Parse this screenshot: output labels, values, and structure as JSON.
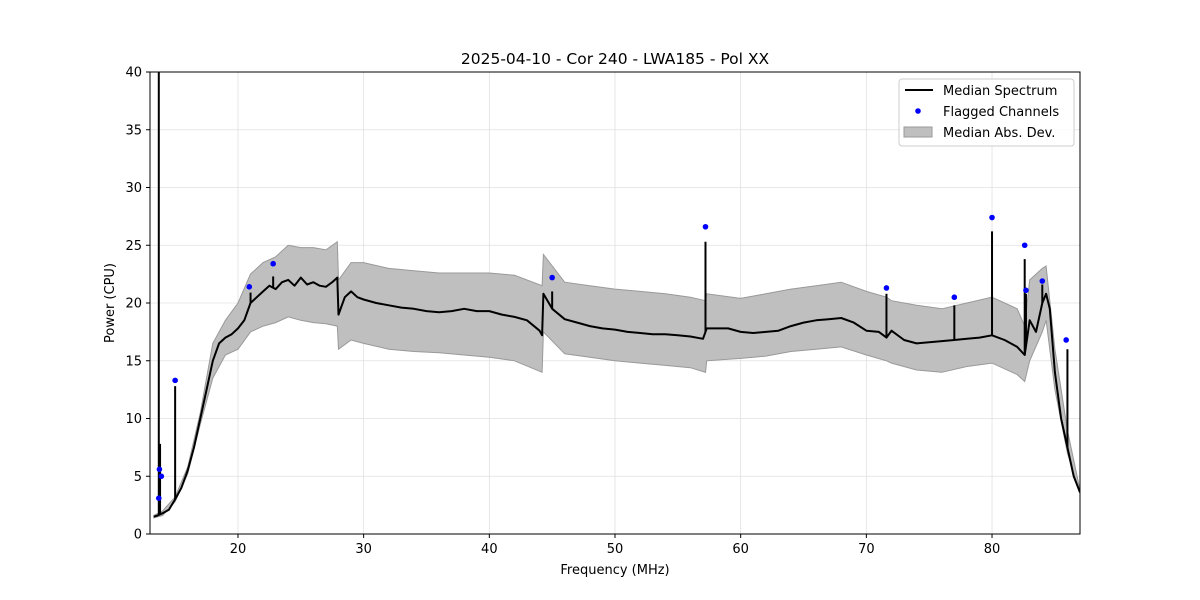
{
  "chart_data": {
    "type": "line",
    "title": "2025-04-10 - Cor 240 - LWA185 - Pol XX",
    "xlabel": "Frequency (MHz)",
    "ylabel": "Power (CPU)",
    "xlim": [
      13,
      87
    ],
    "ylim": [
      0,
      40
    ],
    "xticks": [
      20,
      30,
      40,
      50,
      60,
      70,
      80
    ],
    "yticks": [
      0,
      5,
      10,
      15,
      20,
      25,
      30,
      35,
      40
    ],
    "grid": true,
    "legend_position": "top-right",
    "colors": {
      "median": "#000000",
      "flagged": "#0000ff",
      "mad": "#bfbfbf",
      "mad_edge": "#999999"
    },
    "series": [
      {
        "name": "Median Spectrum",
        "kind": "line",
        "x": [
          13.3,
          13.6,
          14.0,
          14.5,
          15.0,
          15.5,
          16.0,
          16.5,
          17.0,
          17.5,
          18.0,
          18.5,
          19.0,
          19.5,
          20.0,
          20.5,
          21.0,
          21.5,
          22.0,
          22.5,
          23.0,
          23.5,
          24.0,
          24.5,
          25.0,
          25.5,
          26.0,
          26.5,
          27.0,
          27.5,
          27.9,
          28.0,
          28.5,
          29.0,
          29.5,
          30.0,
          31.0,
          32.0,
          33.0,
          34.0,
          35.0,
          36.0,
          37.0,
          38.0,
          39.0,
          40.0,
          41.0,
          42.0,
          43.0,
          44.0,
          44.2,
          44.3,
          45.0,
          46.0,
          47.0,
          48.0,
          49.0,
          50.0,
          51.0,
          52.0,
          53.0,
          54.0,
          55.0,
          56.0,
          57.0,
          57.3,
          58.0,
          59.0,
          60.0,
          61.0,
          62.0,
          63.0,
          64.0,
          65.0,
          66.0,
          67.0,
          68.0,
          69.0,
          70.0,
          71.0,
          71.6,
          72.0,
          73.0,
          74.0,
          75.0,
          76.0,
          77.0,
          78.0,
          79.0,
          80.0,
          81.0,
          82.0,
          82.6,
          83.0,
          83.5,
          84.0,
          84.3,
          84.6,
          85.0,
          85.5,
          86.0,
          86.5,
          87.0
        ],
        "y": [
          1.5,
          1.6,
          1.8,
          2.1,
          3.0,
          4.0,
          5.5,
          7.5,
          10.0,
          12.5,
          15.0,
          16.5,
          17.0,
          17.3,
          17.8,
          18.5,
          20.0,
          20.5,
          21.0,
          21.5,
          21.2,
          21.8,
          22.0,
          21.5,
          22.2,
          21.6,
          21.8,
          21.5,
          21.4,
          21.8,
          22.2,
          19.0,
          20.5,
          21.0,
          20.5,
          20.3,
          20.0,
          19.8,
          19.6,
          19.5,
          19.3,
          19.2,
          19.3,
          19.5,
          19.3,
          19.3,
          19.0,
          18.8,
          18.5,
          17.6,
          17.2,
          20.8,
          19.5,
          18.6,
          18.3,
          18.0,
          17.8,
          17.7,
          17.5,
          17.4,
          17.3,
          17.3,
          17.2,
          17.1,
          16.9,
          17.8,
          17.8,
          17.8,
          17.5,
          17.4,
          17.5,
          17.6,
          18.0,
          18.3,
          18.5,
          18.6,
          18.7,
          18.3,
          17.6,
          17.5,
          17.0,
          17.6,
          16.8,
          16.5,
          16.6,
          16.7,
          16.8,
          16.9,
          17.0,
          17.2,
          16.8,
          16.2,
          15.5,
          18.5,
          17.5,
          20.0,
          20.8,
          19.5,
          14.0,
          10.0,
          7.5,
          5.0,
          3.6
        ],
        "spikes": [
          [
            13.7,
            40.0
          ],
          [
            13.8,
            7.8
          ],
          [
            15.0,
            12.8
          ],
          [
            21.0,
            20.9
          ],
          [
            22.8,
            22.3
          ],
          [
            45.0,
            21.0
          ],
          [
            57.2,
            25.3
          ],
          [
            71.6,
            20.8
          ],
          [
            77.0,
            19.8
          ],
          [
            80.0,
            26.2
          ],
          [
            82.6,
            23.8
          ],
          [
            82.7,
            20.8
          ],
          [
            84.0,
            21.6
          ],
          [
            86.0,
            16.0
          ]
        ]
      },
      {
        "name": "Flagged Channels",
        "kind": "scatter",
        "x": [
          13.7,
          13.75,
          13.9,
          15.0,
          20.9,
          22.8,
          45.0,
          57.2,
          71.6,
          77.0,
          80.0,
          82.6,
          82.7,
          84.0,
          85.9
        ],
        "y": [
          3.1,
          5.6,
          5.0,
          13.3,
          21.4,
          23.4,
          22.2,
          26.6,
          21.3,
          20.5,
          27.4,
          25.0,
          21.1,
          21.9,
          16.8
        ]
      },
      {
        "name": "Median Abs. Dev.",
        "kind": "band",
        "x": [
          13.3,
          14.0,
          15.0,
          16.0,
          17.0,
          18.0,
          19.0,
          20.0,
          21.0,
          22.0,
          23.0,
          24.0,
          25.0,
          26.0,
          27.0,
          27.9,
          28.0,
          29.0,
          30.0,
          32.0,
          34.0,
          36.0,
          38.0,
          40.0,
          42.0,
          44.2,
          44.3,
          46.0,
          48.0,
          50.0,
          52.0,
          54.0,
          56.0,
          57.2,
          57.3,
          60.0,
          62.0,
          64.0,
          66.0,
          68.0,
          70.0,
          71.6,
          72.0,
          74.0,
          76.0,
          78.0,
          80.0,
          82.0,
          82.6,
          83.0,
          84.0,
          84.3,
          85.0,
          86.0,
          87.0
        ],
        "lower": [
          1.4,
          1.6,
          2.8,
          5.2,
          9.5,
          13.5,
          15.5,
          16.0,
          17.5,
          18.0,
          18.3,
          18.8,
          18.5,
          18.3,
          18.2,
          18.0,
          16.0,
          16.8,
          16.5,
          16.0,
          15.8,
          15.7,
          15.5,
          15.3,
          15.0,
          14.0,
          17.5,
          15.6,
          15.3,
          15.0,
          14.8,
          14.6,
          14.4,
          14.0,
          15.0,
          15.2,
          15.4,
          15.8,
          16.0,
          16.2,
          15.5,
          15.0,
          14.8,
          14.2,
          14.0,
          14.5,
          14.8,
          13.8,
          13.2,
          15.0,
          17.5,
          18.5,
          12.5,
          7.0,
          3.5
        ],
        "upper": [
          1.6,
          2.0,
          3.2,
          5.8,
          10.5,
          16.5,
          18.5,
          20.0,
          22.5,
          23.5,
          24.0,
          25.0,
          24.8,
          24.8,
          24.6,
          25.3,
          22.0,
          23.5,
          23.5,
          23.0,
          22.8,
          22.6,
          22.6,
          22.6,
          22.4,
          21.5,
          24.2,
          21.8,
          21.5,
          21.2,
          21.0,
          20.8,
          20.5,
          20.2,
          20.8,
          20.4,
          20.8,
          21.2,
          21.5,
          21.8,
          21.0,
          20.5,
          20.2,
          19.8,
          19.5,
          20.0,
          20.5,
          19.5,
          18.0,
          22.0,
          23.0,
          23.2,
          16.0,
          9.0,
          3.8
        ]
      }
    ]
  }
}
